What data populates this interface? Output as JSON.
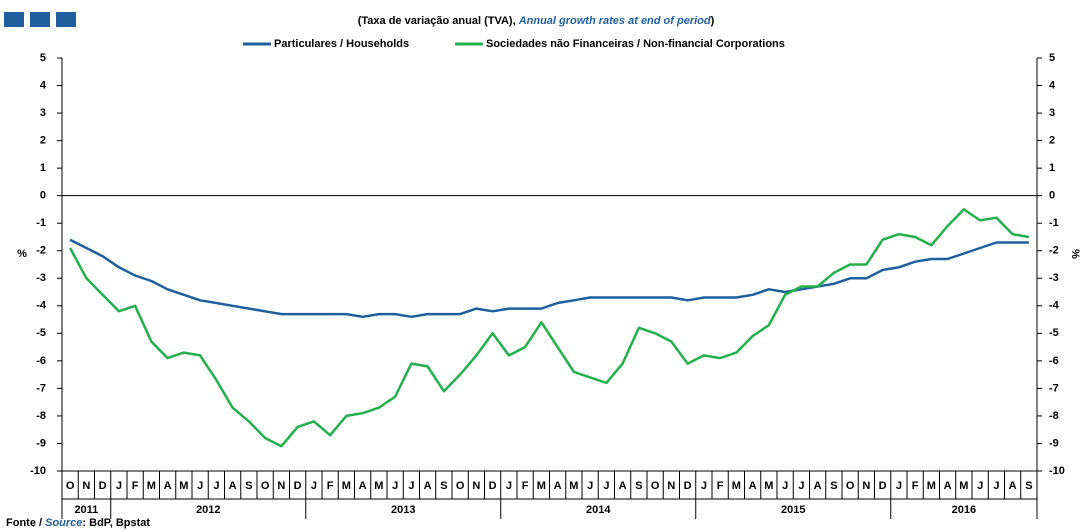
{
  "chart_data": {
    "type": "line",
    "title": "(Taxa de variação anual (TVA), ",
    "title_en": "Annual growth rates at end of period",
    "title_end": ")",
    "ylabel": "%",
    "source": "Fonte / ",
    "source_en": "Source",
    "source_text": ": BdP, Bpstat",
    "categories": [
      "O",
      "N",
      "D",
      "J",
      "F",
      "M",
      "A",
      "M",
      "J",
      "J",
      "A",
      "S",
      "O",
      "N",
      "D",
      "J",
      "F",
      "M",
      "A",
      "M",
      "J",
      "J",
      "A",
      "S",
      "O",
      "N",
      "D",
      "J",
      "F",
      "M",
      "A",
      "M",
      "J",
      "J",
      "A",
      "S",
      "O",
      "N",
      "D",
      "J",
      "F",
      "M",
      "A",
      "M",
      "J",
      "J",
      "A",
      "S",
      "O",
      "N",
      "D",
      "J",
      "F",
      "M",
      "A",
      "M",
      "J",
      "J",
      "A",
      "S"
    ],
    "years": [
      "2011",
      "2012",
      "2013",
      "2014",
      "2015",
      "2016"
    ],
    "series": [
      {
        "name": "Particulares / Households",
        "color": "#1f5f9e",
        "values": [
          -1.6,
          -1.9,
          -2.2,
          -2.6,
          -2.9,
          -3.1,
          -3.4,
          -3.6,
          -3.8,
          -3.9,
          -4.0,
          -4.1,
          -4.2,
          -4.3,
          -4.3,
          -4.3,
          -4.3,
          -4.3,
          -4.4,
          -4.3,
          -4.3,
          -4.4,
          -4.3,
          -4.3,
          -4.3,
          -4.1,
          -4.2,
          -4.1,
          -4.1,
          -4.1,
          -3.9,
          -3.8,
          -3.7,
          -3.7,
          -3.7,
          -3.7,
          -3.7,
          -3.7,
          -3.8,
          -3.7,
          -3.7,
          -3.7,
          -3.6,
          -3.4,
          -3.5,
          -3.4,
          -3.3,
          -3.2,
          -3.0,
          -3.0,
          -2.7,
          -2.6,
          -2.4,
          -2.3,
          -2.3,
          -2.1,
          -1.9,
          -1.7,
          -1.7,
          -1.7
        ]
      },
      {
        "name": "Sociedades não Financeiras / Non-financial Corporations",
        "color": "#22b04b",
        "values": [
          -1.9,
          -3.0,
          -3.6,
          -4.2,
          -4.0,
          -5.3,
          -5.9,
          -5.7,
          -5.8,
          -6.7,
          -7.7,
          -8.2,
          -8.8,
          -9.1,
          -8.4,
          -8.2,
          -8.7,
          -8.0,
          -7.9,
          -7.7,
          -7.3,
          -6.1,
          -6.2,
          -7.1,
          -6.5,
          -5.8,
          -5.0,
          -5.8,
          -5.5,
          -4.6,
          -5.5,
          -6.4,
          -6.6,
          -6.8,
          -6.1,
          -4.8,
          -5.0,
          -5.3,
          -6.1,
          -5.8,
          -5.9,
          -5.7,
          -5.1,
          -4.7,
          -3.6,
          -3.3,
          -3.3,
          -2.8,
          -2.5,
          -2.5,
          -1.6,
          -1.4,
          -1.5,
          -1.8,
          -1.1,
          -0.5,
          -0.9,
          -0.8,
          -1.4,
          -1.5
        ]
      }
    ],
    "ylim": [
      -10,
      5
    ],
    "yticks": [
      -10,
      -9,
      -8,
      -7,
      -6,
      -5,
      -4,
      -3,
      -2,
      -1,
      0,
      1,
      2,
      3,
      4,
      5
    ],
    "y2lim": [
      -10,
      5
    ],
    "y2ticks": [
      -10,
      -9,
      -8,
      -7,
      -6,
      -5,
      -4,
      -3,
      -2,
      -1,
      0,
      1,
      2,
      3,
      4,
      5
    ]
  }
}
